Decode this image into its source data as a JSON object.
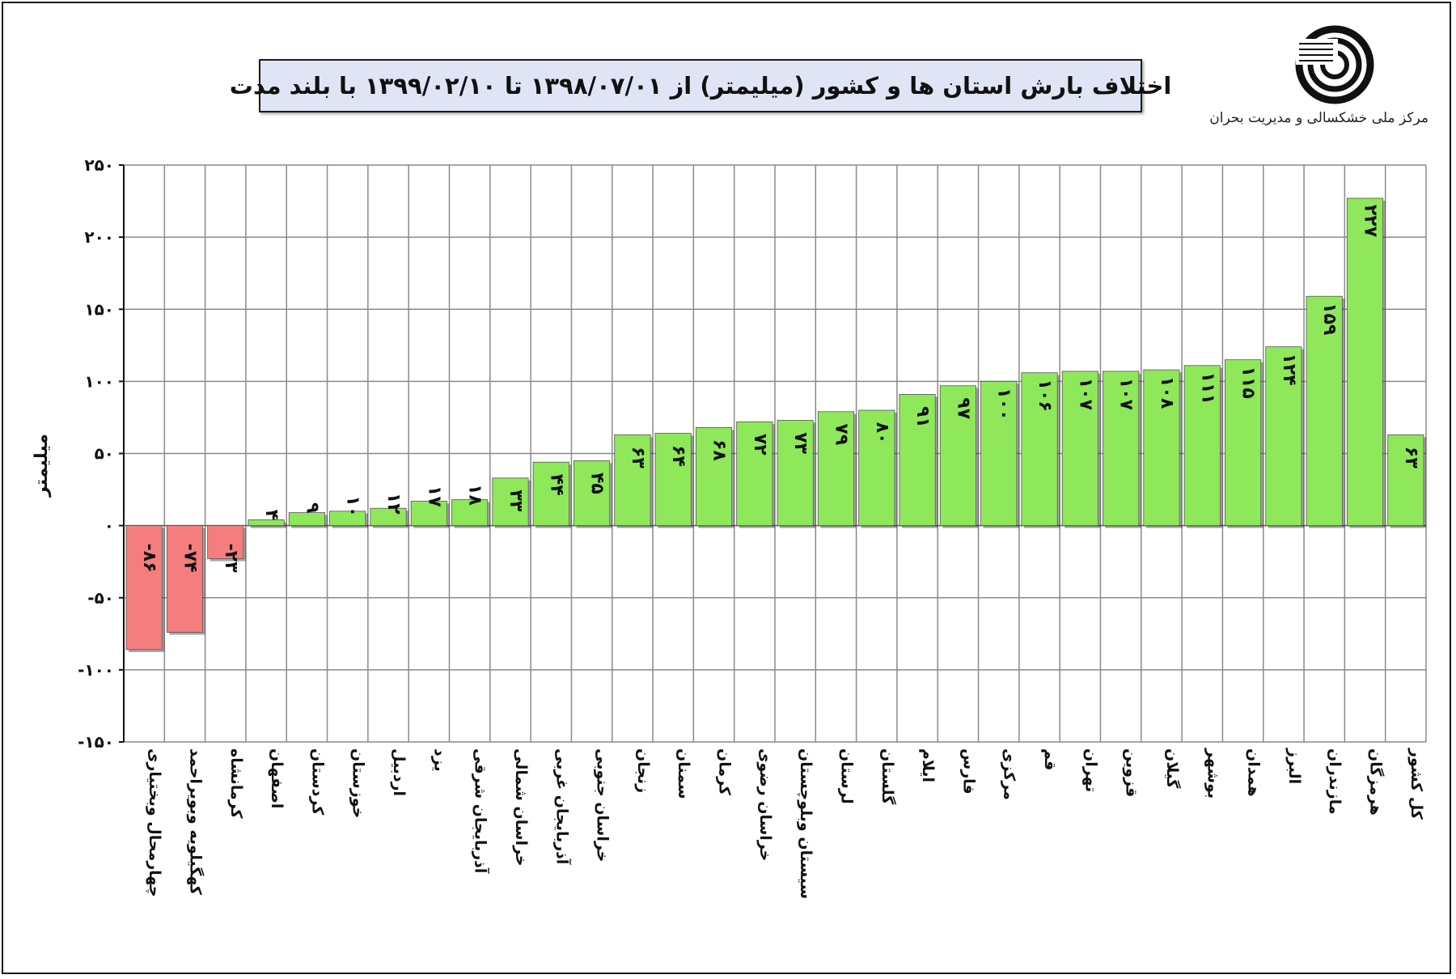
{
  "header": {
    "title": "اختلاف بارش استان ها و کشور (میلیمتر) از ۱۳۹۸/۰۷/۰۱ تا ۱۳۹۹/۰۲/۱۰ با بلند مدت",
    "organization": "مرکز ملی خشکسالی و مدیریت بحران",
    "logo_icon": "drought-center-logo-icon"
  },
  "colors": {
    "positive_bar": "#8ee85a",
    "negative_bar": "#f47e7e",
    "grid": "#8a8a8a",
    "title_background": "#dfe5f5"
  },
  "chart_data": {
    "type": "bar",
    "title": "اختلاف بارش استان ها و کشور (میلیمتر) از ۱۳۹۸/۰۷/۰۱ تا ۱۳۹۹/۰۲/۱۰ با بلند مدت",
    "xlabel": "",
    "ylabel": "میلیمتر",
    "ylim": [
      -150,
      250
    ],
    "yticks": [
      250,
      200,
      150,
      100,
      50,
      0,
      -50,
      -100,
      -150
    ],
    "ytick_labels": [
      "۲۵۰",
      "۲۰۰",
      "۱۵۰",
      "۱۰۰",
      "۵۰",
      "۰",
      "-۵۰",
      "-۱۰۰",
      "-۱۵۰"
    ],
    "grid": true,
    "legend": "none",
    "categories": [
      "چهارمحال وبختیاری",
      "کهگیلویه وبویراحمد",
      "کرمانشاه",
      "اصفهان",
      "کردستان",
      "خوزستان",
      "اردبیل",
      "یزد",
      "آذربایجان شرقی",
      "خراسان شمالی",
      "آذربایجان غربی",
      "خراسان جنوبی",
      "زنجان",
      "سمنان",
      "کرمان",
      "خراسان رضوی",
      "سیستان وبلوچستان",
      "لرستان",
      "گلستان",
      "ایلام",
      "فارس",
      "مرکزی",
      "قم",
      "تهران",
      "قزوین",
      "گیلان",
      "بوشهر",
      "همدان",
      "البرز",
      "مازندران",
      "هرمزگان",
      "کل کشور"
    ],
    "values": [
      -86,
      -74,
      -23,
      4,
      9,
      10,
      12,
      17,
      18,
      33,
      44,
      45,
      63,
      64,
      68,
      72,
      73,
      79,
      80,
      91,
      97,
      100,
      106,
      107,
      107,
      108,
      111,
      115,
      124,
      159,
      227,
      63
    ],
    "value_labels": [
      "-۸۶",
      "-۷۴",
      "-۲۳",
      "۴",
      "۹",
      "۱۰",
      "۱۲",
      "۱۷",
      "۱۸",
      "۳۳",
      "۴۴",
      "۴۵",
      "۶۳",
      "۶۴",
      "۶۸",
      "۷۲",
      "۷۳",
      "۷۹",
      "۸۰",
      "۹۱",
      "۹۷",
      "۱۰۰",
      "۱۰۶",
      "۱۰۷",
      "۱۰۷",
      "۱۰۸",
      "۱۱۱",
      "۱۱۵",
      "۱۲۴",
      "۱۵۹",
      "۲۲۷",
      "۶۳"
    ]
  }
}
